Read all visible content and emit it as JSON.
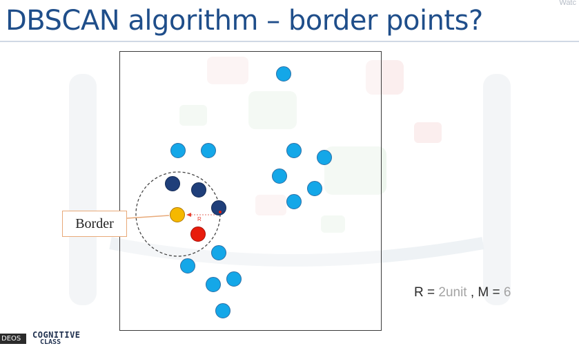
{
  "slide": {
    "title": "DBSCAN algorithm – border points?",
    "watch_tag": "Watc",
    "callout_label": "Border",
    "radius_label": "R",
    "params": {
      "r_label": "R = ",
      "r_value": "2unit",
      "separator": " , ",
      "m_label": "M = ",
      "m_value": "6"
    }
  },
  "footer": {
    "tag": "DEOS",
    "brand_line1": "COGNITIVE",
    "brand_line2": "CLASS"
  },
  "colors": {
    "title": "#1f4e8a",
    "noise_point": "#14a7e8",
    "core_point": "#1f3f7a",
    "border_point": "#f5b800",
    "selected_point": "#e81c0c",
    "neighborhood_circle": "#444444",
    "callout_border": "#e8a978"
  }
}
